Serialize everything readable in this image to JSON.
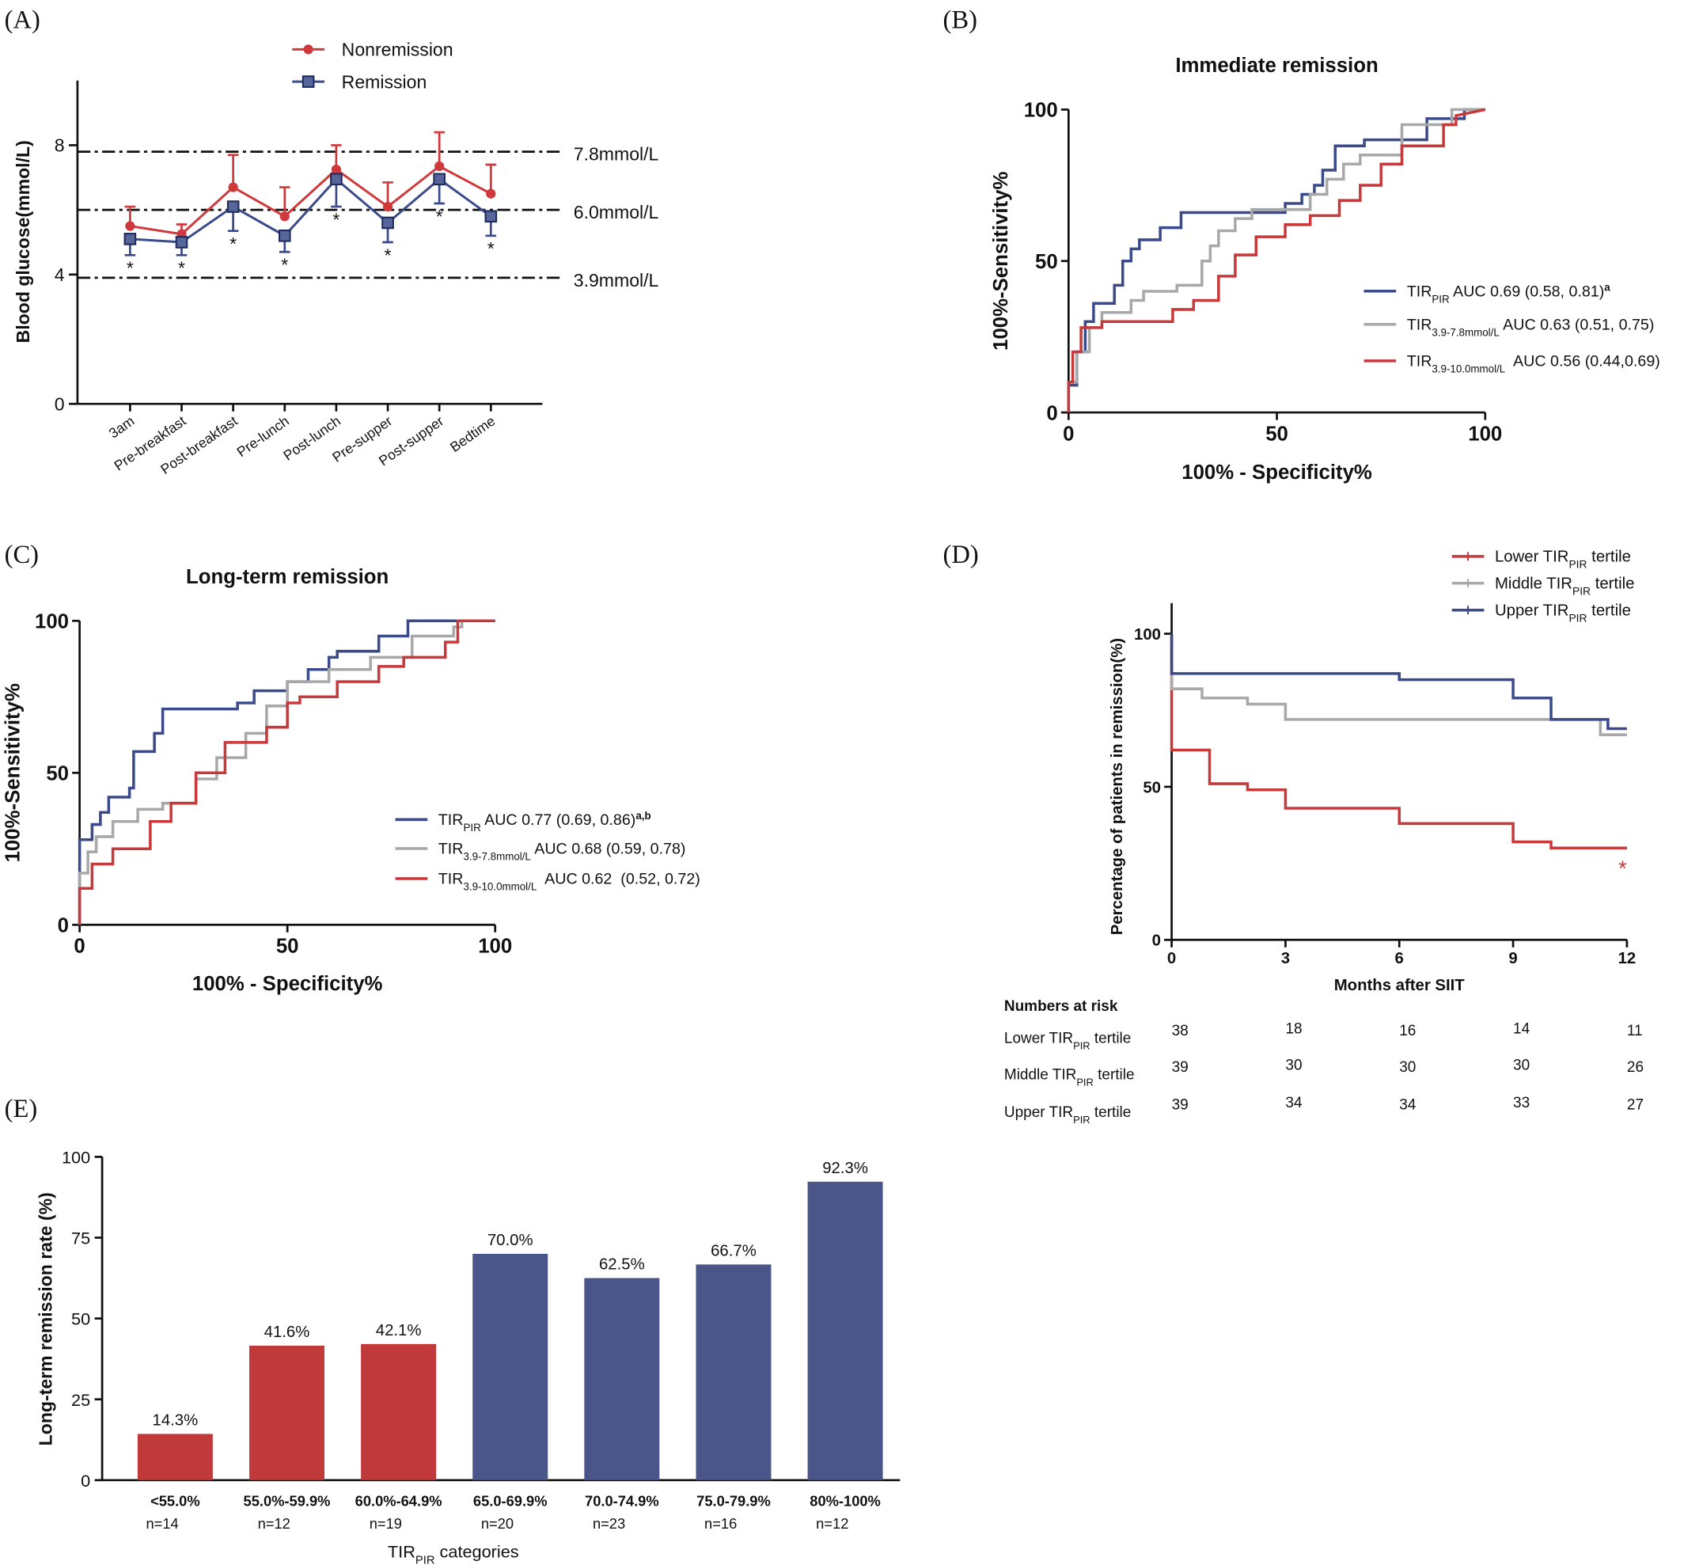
{
  "panels": [
    "(A)",
    "(B)",
    "(C)",
    "(D)",
    "(E)"
  ],
  "chart_data": [
    {
      "type": "line",
      "ylabel": "Blood glucose(mmol/L)",
      "categories": [
        "3am",
        "Pre-breakfast",
        "Post-breakfast",
        "Pre-lunch",
        "Post-lunch",
        "Pre-supper",
        "Post-supper",
        "Bedtime"
      ],
      "ylim": [
        0,
        10
      ],
      "yticks": [
        0,
        4,
        8
      ],
      "series": [
        {
          "name": "Nonremission",
          "color": "#d0393b",
          "marker": "circle",
          "error_direction": "up",
          "values": [
            5.5,
            5.25,
            6.7,
            5.8,
            7.25,
            6.1,
            7.35,
            6.5
          ],
          "errors": [
            0.6,
            0.3,
            1.0,
            0.9,
            0.75,
            0.75,
            1.05,
            0.9
          ]
        },
        {
          "name": "Remission",
          "color": "#3b4a8a",
          "marker": "square",
          "error_direction": "down",
          "values": [
            5.1,
            5.0,
            6.1,
            5.2,
            6.95,
            5.6,
            6.95,
            5.8
          ],
          "errors": [
            0.5,
            0.4,
            0.75,
            0.5,
            0.85,
            0.6,
            0.75,
            0.6
          ]
        }
      ],
      "reference_lines": [
        {
          "value": 7.8,
          "label": "7.8mmol/L"
        },
        {
          "value": 6.0,
          "label": "6.0mmol/L"
        },
        {
          "value": 3.9,
          "label": "3.9mmol/L"
        }
      ],
      "annotations": [
        "*",
        "*",
        "*",
        "*",
        "*",
        "*",
        "*",
        "*"
      ]
    },
    {
      "type": "line",
      "title": "Immediate remission",
      "xlabel": "100% - Specificity%",
      "ylabel": "100%-Sensitivity%",
      "xlim": [
        0,
        100
      ],
      "ylim": [
        0,
        100
      ],
      "xticks": [
        0,
        50,
        100
      ],
      "yticks": [
        0,
        50,
        100
      ],
      "series": [
        {
          "name": "TIR",
          "name_sub": "PIR",
          "name_rest": " AUC 0.69 (0.58, 0.81)",
          "name_sup": "a",
          "color": "#3b4a8a",
          "x": [
            0,
            0,
            2,
            2,
            4,
            4,
            6,
            6,
            11,
            11,
            13,
            13,
            15,
            15,
            17,
            17,
            22,
            22,
            27,
            27,
            52,
            52,
            56,
            56,
            59,
            59,
            61,
            61,
            64,
            64,
            71,
            71,
            86,
            86,
            95,
            95,
            100
          ],
          "y": [
            0,
            9,
            9,
            20,
            20,
            30,
            30,
            36,
            36,
            42,
            42,
            50,
            50,
            54,
            54,
            57,
            57,
            61,
            61,
            66,
            66,
            69,
            69,
            72,
            72,
            75,
            75,
            80,
            80,
            88,
            88,
            90,
            90,
            97,
            97,
            100,
            100
          ]
        },
        {
          "name": "TIR",
          "name_sub": "3.9-7.8mmol/L",
          "name_rest": " AUC 0.63 (0.51, 0.75)",
          "color": "#a8a8a8",
          "x": [
            0,
            0,
            2,
            2,
            5,
            5,
            8,
            8,
            15,
            15,
            18,
            18,
            26,
            26,
            32,
            32,
            34,
            34,
            36,
            36,
            40,
            40,
            44,
            44,
            58,
            58,
            62,
            62,
            66,
            66,
            70,
            70,
            80,
            80,
            92,
            92,
            100
          ],
          "y": [
            0,
            10,
            10,
            20,
            20,
            28,
            28,
            33,
            33,
            37,
            37,
            40,
            40,
            42,
            42,
            50,
            50,
            55,
            55,
            60,
            60,
            64,
            64,
            67,
            67,
            72,
            72,
            77,
            77,
            82,
            82,
            85,
            85,
            95,
            95,
            100,
            100
          ]
        },
        {
          "name": "TIR",
          "name_sub": "3.9-10.0mmol/L",
          "name_rest": "  AUC 0.56 (0.44,0.69)",
          "color": "#c8393b",
          "x": [
            0,
            0,
            1,
            1,
            3,
            3,
            8,
            8,
            25,
            25,
            30,
            30,
            36,
            36,
            40,
            40,
            45,
            45,
            52,
            52,
            58,
            58,
            65,
            65,
            70,
            70,
            75,
            75,
            80,
            80,
            90,
            90,
            93,
            93,
            100
          ],
          "y": [
            0,
            10,
            10,
            20,
            20,
            28,
            28,
            30,
            30,
            34,
            34,
            37,
            37,
            45,
            45,
            52,
            52,
            58,
            58,
            62,
            62,
            65,
            65,
            70,
            70,
            75,
            75,
            82,
            82,
            88,
            88,
            95,
            95,
            98,
            100
          ]
        }
      ]
    },
    {
      "type": "line",
      "title": "Long-term remission",
      "xlabel": "100% - Specificity%",
      "ylabel": "100%-Sensitivity%",
      "xlim": [
        0,
        100
      ],
      "ylim": [
        0,
        100
      ],
      "xticks": [
        0,
        50,
        100
      ],
      "yticks": [
        0,
        50,
        100
      ],
      "series": [
        {
          "name": "TIR",
          "name_sub": "PIR",
          "name_rest": " AUC 0.77 (0.69, 0.86)",
          "name_sup": "a,b",
          "color": "#3b4a8a",
          "x": [
            0,
            0,
            3,
            3,
            5,
            5,
            7,
            7,
            12,
            12,
            13,
            13,
            18,
            18,
            20,
            20,
            38,
            38,
            42,
            42,
            50,
            50,
            55,
            55,
            60,
            60,
            62,
            62,
            72,
            72,
            79,
            79,
            100
          ],
          "y": [
            0,
            28,
            28,
            33,
            33,
            37,
            37,
            42,
            42,
            45,
            45,
            57,
            57,
            63,
            63,
            71,
            71,
            73,
            73,
            77,
            77,
            80,
            80,
            84,
            84,
            88,
            88,
            90,
            90,
            95,
            95,
            100,
            100
          ]
        },
        {
          "name": "TIR",
          "name_sub": "3.9-7.8mmol/L",
          "name_rest": " AUC 0.68 (0.59, 0.78)",
          "color": "#a8a8a8",
          "x": [
            0,
            0,
            2,
            2,
            4,
            4,
            8,
            8,
            14,
            14,
            20,
            20,
            28,
            28,
            33,
            33,
            40,
            40,
            45,
            45,
            50,
            50,
            60,
            60,
            70,
            70,
            80,
            80,
            90,
            90,
            92,
            92,
            100
          ],
          "y": [
            0,
            17,
            17,
            24,
            24,
            29,
            29,
            34,
            34,
            38,
            38,
            40,
            40,
            48,
            48,
            55,
            55,
            63,
            63,
            72,
            72,
            80,
            80,
            84,
            84,
            88,
            88,
            95,
            95,
            98,
            98,
            100,
            100
          ]
        },
        {
          "name": "TIR",
          "name_sub": "3.9-10.0mmol/L",
          "name_rest": "  AUC 0.62  (0.52, 0.72)",
          "color": "#c8393b",
          "x": [
            0,
            0,
            3,
            3,
            8,
            8,
            17,
            17,
            22,
            22,
            28,
            28,
            35,
            35,
            45,
            45,
            50,
            50,
            53,
            53,
            62,
            62,
            72,
            72,
            78,
            78,
            88,
            88,
            91,
            91,
            100
          ],
          "y": [
            0,
            12,
            12,
            20,
            20,
            25,
            25,
            34,
            34,
            40,
            40,
            50,
            50,
            60,
            60,
            65,
            65,
            73,
            73,
            75,
            75,
            80,
            80,
            85,
            85,
            88,
            88,
            93,
            93,
            100,
            100
          ]
        }
      ]
    },
    {
      "type": "line",
      "xlabel": "Months after SIIT",
      "ylabel": "Percentage of patients in remission(%)",
      "xlim": [
        0,
        12
      ],
      "ylim": [
        0,
        110
      ],
      "xticks": [
        0,
        3,
        6,
        9,
        12
      ],
      "yticks": [
        0,
        50,
        100
      ],
      "series": [
        {
          "name": "Lower TIR",
          "name_sub": "PIR",
          "name_rest": " tertile",
          "color": "#c8393b",
          "x": [
            0,
            0,
            1,
            1,
            2,
            2,
            3,
            3,
            6,
            6,
            9,
            9,
            10,
            10,
            12
          ],
          "y": [
            100,
            62,
            62,
            51,
            51,
            49,
            49,
            43,
            43,
            38,
            38,
            32,
            32,
            30,
            30
          ]
        },
        {
          "name": "Middle TIR",
          "name_sub": "PIR",
          "name_rest": " tertile",
          "color": "#a8a8a8",
          "x": [
            0,
            0,
            0.8,
            0.8,
            2,
            2,
            3,
            3,
            11.3,
            11.3,
            12
          ],
          "y": [
            100,
            82,
            82,
            79,
            79,
            77,
            77,
            72,
            72,
            67,
            67
          ]
        },
        {
          "name": "Upper TIR",
          "name_sub": "PIR",
          "name_rest": " tertile",
          "color": "#3b4a8a",
          "x": [
            0,
            0,
            6,
            6,
            9,
            9,
            10,
            10,
            11.5,
            11.5,
            12
          ],
          "y": [
            100,
            87,
            87,
            85,
            85,
            79,
            79,
            72,
            72,
            69,
            69
          ]
        }
      ],
      "annotation": "*",
      "risk_table": {
        "title": "Numbers at risk",
        "rows": [
          {
            "label": "Lower TIR",
            "label_sub": "PIR",
            "label_rest": " tertile",
            "values": [
              38,
              18,
              16,
              14,
              11
            ]
          },
          {
            "label": "Middle TIR",
            "label_sub": "PIR",
            "label_rest": " tertile",
            "values": [
              39,
              30,
              30,
              30,
              26
            ]
          },
          {
            "label": "Upper TIR",
            "label_sub": "PIR",
            "label_rest": " tertile",
            "values": [
              39,
              34,
              34,
              33,
              27
            ]
          }
        ]
      }
    },
    {
      "type": "bar",
      "ylabel": "Long-term remission rate (%)",
      "xlabel": "TIR",
      "xlabel_sub": "PIR",
      "xlabel_rest": " categories",
      "categories": [
        "<55.0%",
        "55.0%-59.9%",
        "60.0%-64.9%",
        "65.0-69.9%",
        "70.0-74.9%",
        "75.0-79.9%",
        "80%-100%"
      ],
      "sublabels": [
        "n=14",
        "n=12",
        "n=19",
        "n=20",
        "n=23",
        "n=16",
        "n=12"
      ],
      "values": [
        14.3,
        41.6,
        42.1,
        70.0,
        62.5,
        66.7,
        92.3
      ],
      "value_labels": [
        "14.3%",
        "41.6%",
        "42.1%",
        "70.0%",
        "62.5%",
        "66.7%",
        "92.3%"
      ],
      "colors": [
        "#c0393b",
        "#c0393b",
        "#c0393b",
        "#4a5589",
        "#4a5589",
        "#4a5589",
        "#4a5589"
      ],
      "ylim": [
        0,
        100
      ],
      "yticks": [
        0,
        25,
        50,
        75,
        100
      ]
    }
  ]
}
